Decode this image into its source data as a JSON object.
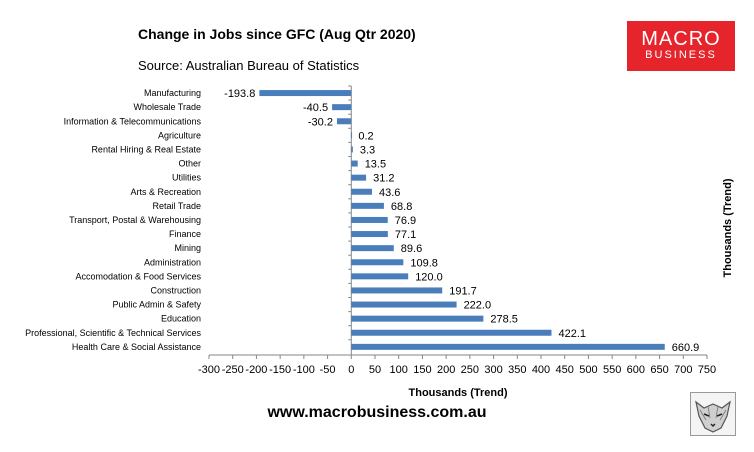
{
  "title": "Change in Jobs since GFC (Aug Qtr 2020)",
  "subtitle": "Source: Australian Bureau of Statistics",
  "logo": {
    "line1": "MACRO",
    "line2": "BUSINESS",
    "bg_color": "#e5242b"
  },
  "footer": {
    "url": "www.macrobusiness.com.au"
  },
  "chart_data": {
    "type": "bar",
    "orientation": "horizontal",
    "categories": [
      "Manufacturing",
      "Wholesale Trade",
      "Information & Telecommunications",
      "Agriculture",
      "Rental Hiring & Real Estate",
      "Other",
      "Utilities",
      "Arts & Recreation",
      "Retail Trade",
      "Transport, Postal & Warehousing",
      "Finance",
      "Mining",
      "Administration",
      "Accomodation & Food Services",
      "Construction",
      "Public Admin & Safety",
      "Education",
      "Professional, Scientific & Technical Services",
      "Health Care & Social Assistance"
    ],
    "values": [
      -193.8,
      -40.5,
      -30.2,
      0.2,
      3.3,
      13.5,
      31.2,
      43.6,
      68.8,
      76.9,
      77.1,
      89.6,
      109.8,
      120.0,
      191.7,
      222.0,
      278.5,
      422.1,
      660.9
    ],
    "value_labels": [
      "-193.8",
      "-40.5",
      "-30.2",
      "0.2",
      "3.3",
      "13.5",
      "31.2",
      "43.6",
      "68.8",
      "76.9",
      "77.1",
      "89.6",
      "109.8",
      "120.0",
      "191.7",
      "222.0",
      "278.5",
      "422.1",
      "660.9"
    ],
    "xlabel": "Thousands (Trend)",
    "y2label": "Thousands (Trend)",
    "xlim": [
      -300,
      750
    ],
    "xticks": [
      -300,
      -250,
      -200,
      -150,
      -100,
      -50,
      0,
      50,
      100,
      150,
      200,
      250,
      300,
      350,
      400,
      450,
      500,
      550,
      600,
      650,
      700,
      750
    ],
    "bar_color": "#4a7ebb",
    "grid": false,
    "legend": "none"
  }
}
